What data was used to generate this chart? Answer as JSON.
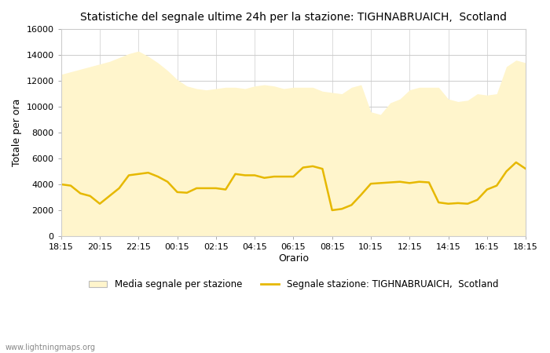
{
  "title": "Statistiche del segnale ultime 24h per la stazione: TIGHNABRUAICH,  Scotland",
  "xlabel": "Orario",
  "ylabel": "Totale per ora",
  "xlim": [
    0,
    24
  ],
  "ylim": [
    0,
    16000
  ],
  "yticks": [
    0,
    2000,
    4000,
    6000,
    8000,
    10000,
    12000,
    14000,
    16000
  ],
  "xtick_labels": [
    "18:15",
    "20:15",
    "22:15",
    "00:15",
    "02:15",
    "04:15",
    "06:15",
    "08:15",
    "10:15",
    "12:15",
    "14:15",
    "16:15",
    "18:15"
  ],
  "fill_color": "#FFF5CC",
  "fill_edge_color": "#FFF5CC",
  "line_color": "#E6B800",
  "line_width": 1.8,
  "background_color": "#ffffff",
  "plot_bg_color": "#ffffff",
  "grid_color": "#cccccc",
  "watermark": "www.lightningmaps.org",
  "legend_fill_label": "Media segnale per stazione",
  "legend_line_label": "Segnale stazione: TIGHNABRUAICH,  Scotland",
  "fill_x": [
    0,
    0.5,
    1.0,
    1.5,
    2.0,
    2.5,
    3.0,
    3.5,
    4.0,
    4.5,
    5.0,
    5.5,
    6.0,
    6.5,
    7.0,
    7.5,
    8.0,
    8.5,
    9.0,
    9.5,
    10.0,
    10.5,
    11.0,
    11.5,
    12.0,
    12.5,
    13.0,
    13.5,
    14.0,
    14.5,
    15.0,
    15.5,
    16.0,
    16.5,
    17.0,
    17.5,
    18.0,
    18.5,
    19.0,
    19.5,
    20.0,
    20.5,
    21.0,
    21.5,
    22.0,
    22.5,
    23.0,
    23.5,
    24.0
  ],
  "fill_y": [
    12500,
    12700,
    12900,
    13100,
    13300,
    13500,
    13800,
    14100,
    14300,
    13900,
    13400,
    12800,
    12100,
    11600,
    11400,
    11300,
    11400,
    11500,
    11500,
    11400,
    11600,
    11700,
    11600,
    11400,
    11500,
    11500,
    11500,
    11200,
    11100,
    11000,
    11500,
    11700,
    9600,
    9400,
    10300,
    10600,
    11300,
    11500,
    11500,
    11500,
    10600,
    10400,
    10500,
    11000,
    10900,
    11000,
    13100,
    13600,
    13400
  ],
  "line_x": [
    0,
    0.5,
    1.0,
    1.5,
    2.0,
    2.5,
    3.0,
    3.5,
    4.0,
    4.5,
    5.0,
    5.5,
    6.0,
    6.5,
    7.0,
    7.5,
    8.0,
    8.5,
    9.0,
    9.5,
    10.0,
    10.5,
    11.0,
    11.5,
    12.0,
    12.5,
    13.0,
    13.5,
    14.0,
    14.5,
    15.0,
    15.5,
    16.0,
    16.5,
    17.0,
    17.5,
    18.0,
    18.5,
    19.0,
    19.5,
    20.0,
    20.5,
    21.0,
    21.5,
    22.0,
    22.5,
    23.0,
    23.5,
    24.0
  ],
  "line_y": [
    4000,
    3900,
    3300,
    3100,
    2500,
    3100,
    3700,
    4700,
    4800,
    4900,
    4600,
    4200,
    3400,
    3350,
    3700,
    3700,
    3700,
    3600,
    4800,
    4700,
    4700,
    4500,
    4600,
    4600,
    4600,
    5300,
    5400,
    5200,
    2000,
    2100,
    2400,
    3200,
    4050,
    4100,
    4150,
    4200,
    4100,
    4200,
    4150,
    2600,
    2500,
    2550,
    2500,
    2800,
    3600,
    3900,
    5000,
    5700,
    5200
  ]
}
